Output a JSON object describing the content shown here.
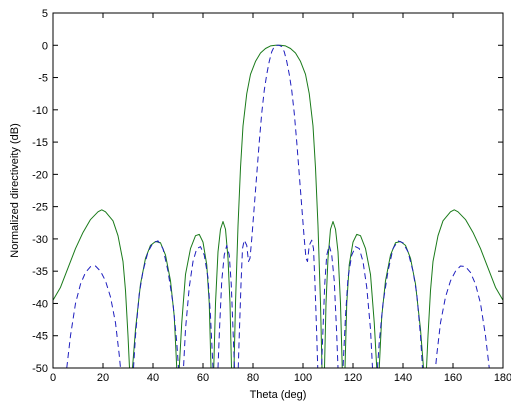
{
  "chart_data": {
    "type": "line",
    "title": "",
    "xlabel": "Theta (deg)",
    "ylabel": "Normalized directiveity (dB)",
    "xlim": [
      0,
      180
    ],
    "ylim": [
      -50,
      5
    ],
    "xticks": [
      "0",
      "20",
      "40",
      "60",
      "80",
      "100",
      "120",
      "140",
      "160",
      "180"
    ],
    "yticks": [
      "5",
      "0",
      "-5",
      "-10",
      "-15",
      "-20",
      "-25",
      "-30",
      "-35",
      "-40",
      "-45",
      "-50"
    ],
    "grid": false,
    "series": [
      {
        "style": "solid",
        "color": "#1a7a1a",
        "points": [
          [
            0,
            -39.5
          ],
          [
            3,
            -37.5
          ],
          [
            6,
            -34.5
          ],
          [
            9,
            -31.5
          ],
          [
            12,
            -29
          ],
          [
            15,
            -27
          ],
          [
            18,
            -25.8
          ],
          [
            19.5,
            -25.5
          ],
          [
            21,
            -25.8
          ],
          [
            24,
            -27.2
          ],
          [
            26,
            -29.5
          ],
          [
            28,
            -33.5
          ],
          [
            29,
            -38
          ],
          [
            30,
            -45
          ],
          [
            30.6,
            -50
          ],
          [
            31.8,
            -50
          ],
          [
            33,
            -44
          ],
          [
            35,
            -37
          ],
          [
            37,
            -33
          ],
          [
            39,
            -31
          ],
          [
            41,
            -30.4
          ],
          [
            43,
            -30.6
          ],
          [
            45,
            -32.5
          ],
          [
            47,
            -36.5
          ],
          [
            48.5,
            -42
          ],
          [
            49.5,
            -50
          ],
          [
            50.5,
            -50
          ],
          [
            51.5,
            -43
          ],
          [
            53,
            -35.5
          ],
          [
            55,
            -31.5
          ],
          [
            57,
            -29.5
          ],
          [
            58.5,
            -29.3
          ],
          [
            60,
            -30.5
          ],
          [
            61.5,
            -34
          ],
          [
            62.5,
            -40
          ],
          [
            63.2,
            -50
          ],
          [
            64.3,
            -50
          ],
          [
            65,
            -40
          ],
          [
            66,
            -32
          ],
          [
            67,
            -28.5
          ],
          [
            68,
            -27.3
          ],
          [
            69,
            -28.5
          ],
          [
            70,
            -33
          ],
          [
            70.8,
            -40
          ],
          [
            71.4,
            -50
          ],
          [
            72.4,
            -50
          ],
          [
            73,
            -40
          ],
          [
            74,
            -28
          ],
          [
            75,
            -19
          ],
          [
            76,
            -12.5
          ],
          [
            77.5,
            -7.5
          ],
          [
            79,
            -4.5
          ],
          [
            81,
            -2.5
          ],
          [
            83,
            -1.2
          ],
          [
            85,
            -0.5
          ],
          [
            87,
            -0.1
          ],
          [
            89,
            0
          ],
          [
            91,
            0
          ],
          [
            93,
            -0.1
          ],
          [
            95,
            -0.5
          ],
          [
            97,
            -1.2
          ],
          [
            99,
            -2.5
          ],
          [
            101,
            -4.5
          ],
          [
            102.5,
            -7.5
          ],
          [
            104,
            -12.5
          ],
          [
            105,
            -19
          ],
          [
            106,
            -28
          ],
          [
            107,
            -40
          ],
          [
            107.6,
            -50
          ],
          [
            108.6,
            -50
          ],
          [
            109.2,
            -40
          ],
          [
            110,
            -33
          ],
          [
            111,
            -28.5
          ],
          [
            112,
            -27.3
          ],
          [
            113,
            -28.5
          ],
          [
            114,
            -32
          ],
          [
            115,
            -40
          ],
          [
            115.7,
            -50
          ],
          [
            116.8,
            -50
          ],
          [
            117.5,
            -40
          ],
          [
            118.5,
            -34
          ],
          [
            120,
            -30.5
          ],
          [
            121.5,
            -29.3
          ],
          [
            123,
            -29.5
          ],
          [
            125,
            -31.5
          ],
          [
            127,
            -35.5
          ],
          [
            128.5,
            -43
          ],
          [
            129.5,
            -50
          ],
          [
            130.5,
            -50
          ],
          [
            131.5,
            -42
          ],
          [
            133,
            -36.5
          ],
          [
            135,
            -32.5
          ],
          [
            137,
            -30.6
          ],
          [
            139,
            -30.4
          ],
          [
            141,
            -31
          ],
          [
            143,
            -33
          ],
          [
            145,
            -37
          ],
          [
            147,
            -44
          ],
          [
            148.2,
            -50
          ],
          [
            149.4,
            -50
          ],
          [
            150,
            -45
          ],
          [
            151,
            -38
          ],
          [
            152,
            -33.5
          ],
          [
            154,
            -29.5
          ],
          [
            156,
            -27.2
          ],
          [
            159,
            -25.8
          ],
          [
            160.5,
            -25.5
          ],
          [
            162,
            -25.8
          ],
          [
            165,
            -27
          ],
          [
            168,
            -29
          ],
          [
            171,
            -31.5
          ],
          [
            174,
            -34.5
          ],
          [
            177,
            -37.5
          ],
          [
            180,
            -39.5
          ]
        ]
      },
      {
        "style": "dashed",
        "color": "#1f1fbf",
        "points": [
          [
            5.5,
            -50
          ],
          [
            7,
            -45
          ],
          [
            9,
            -40
          ],
          [
            11,
            -37
          ],
          [
            13,
            -35.2
          ],
          [
            15,
            -34.3
          ],
          [
            17,
            -34.2
          ],
          [
            19,
            -35
          ],
          [
            21,
            -36.5
          ],
          [
            23,
            -39
          ],
          [
            25,
            -43
          ],
          [
            26.5,
            -48
          ],
          [
            27,
            -50
          ],
          [
            32.2,
            -50
          ],
          [
            33,
            -45
          ],
          [
            34.5,
            -38.5
          ],
          [
            36,
            -35
          ],
          [
            38,
            -32
          ],
          [
            40,
            -30.6
          ],
          [
            42,
            -30.3
          ],
          [
            44,
            -31.5
          ],
          [
            46,
            -35
          ],
          [
            48,
            -40
          ],
          [
            49.5,
            -46
          ],
          [
            50.2,
            -50
          ],
          [
            52.2,
            -50
          ],
          [
            53,
            -44
          ],
          [
            54.5,
            -37.5
          ],
          [
            56,
            -33.5
          ],
          [
            57.5,
            -31.5
          ],
          [
            59,
            -31.2
          ],
          [
            60.5,
            -32.5
          ],
          [
            62,
            -36
          ],
          [
            63,
            -42
          ],
          [
            64,
            -50
          ],
          [
            66,
            -50
          ],
          [
            66.6,
            -44
          ],
          [
            67.5,
            -36.5
          ],
          [
            68.5,
            -32.5
          ],
          [
            69.5,
            -31
          ],
          [
            70.5,
            -32.5
          ],
          [
            71.3,
            -37
          ],
          [
            72,
            -44
          ],
          [
            72.6,
            -50
          ],
          [
            74.1,
            -50
          ],
          [
            74.5,
            -45
          ],
          [
            75.2,
            -37
          ],
          [
            75.8,
            -31.5
          ],
          [
            76.5,
            -30.2
          ],
          [
            77.5,
            -31
          ],
          [
            78.2,
            -33.5
          ],
          [
            78.8,
            -33
          ],
          [
            79.5,
            -30
          ],
          [
            80.5,
            -25
          ],
          [
            81.5,
            -20
          ],
          [
            82.5,
            -15
          ],
          [
            83.5,
            -10.5
          ],
          [
            84.5,
            -7
          ],
          [
            85.5,
            -4.5
          ],
          [
            86.5,
            -2.5
          ],
          [
            87.5,
            -1
          ],
          [
            88.5,
            -0.2
          ],
          [
            89.5,
            0
          ],
          [
            90.5,
            0
          ],
          [
            91.5,
            -0.2
          ],
          [
            92.5,
            -1
          ],
          [
            93.5,
            -2.5
          ],
          [
            94.5,
            -4.5
          ],
          [
            95.5,
            -7
          ],
          [
            96.5,
            -10.5
          ],
          [
            97.5,
            -15
          ],
          [
            98.5,
            -20
          ],
          [
            99.5,
            -25
          ],
          [
            100.5,
            -30
          ],
          [
            101.2,
            -33
          ],
          [
            101.8,
            -33.5
          ],
          [
            102.5,
            -31
          ],
          [
            103.5,
            -30.2
          ],
          [
            104.2,
            -31.5
          ],
          [
            104.8,
            -37
          ],
          [
            105.5,
            -45
          ],
          [
            105.9,
            -50
          ],
          [
            107.4,
            -50
          ],
          [
            108,
            -44
          ],
          [
            108.7,
            -37
          ],
          [
            109.5,
            -32.5
          ],
          [
            110.5,
            -31
          ],
          [
            111.5,
            -32.5
          ],
          [
            112.5,
            -36.5
          ],
          [
            113.4,
            -44
          ],
          [
            114,
            -50
          ],
          [
            116,
            -50
          ],
          [
            117,
            -42
          ],
          [
            118,
            -36
          ],
          [
            119.5,
            -32.5
          ],
          [
            121,
            -31.2
          ],
          [
            122.5,
            -31.5
          ],
          [
            124,
            -33.5
          ],
          [
            125.5,
            -37.5
          ],
          [
            127,
            -44
          ],
          [
            127.8,
            -50
          ],
          [
            129.8,
            -50
          ],
          [
            130.5,
            -46
          ],
          [
            132,
            -40
          ],
          [
            134,
            -35
          ],
          [
            136,
            -31.5
          ],
          [
            138,
            -30.3
          ],
          [
            140,
            -30.6
          ],
          [
            142,
            -32
          ],
          [
            144,
            -35
          ],
          [
            145.5,
            -38.5
          ],
          [
            147,
            -45
          ],
          [
            147.8,
            -50
          ],
          [
            153,
            -50
          ],
          [
            153.5,
            -48
          ],
          [
            155,
            -43
          ],
          [
            157,
            -39
          ],
          [
            159,
            -36.5
          ],
          [
            161,
            -35
          ],
          [
            163,
            -34.2
          ],
          [
            165,
            -34.3
          ],
          [
            167,
            -35.2
          ],
          [
            169,
            -37
          ],
          [
            171,
            -40
          ],
          [
            173,
            -45
          ],
          [
            174.5,
            -50
          ]
        ]
      }
    ]
  }
}
